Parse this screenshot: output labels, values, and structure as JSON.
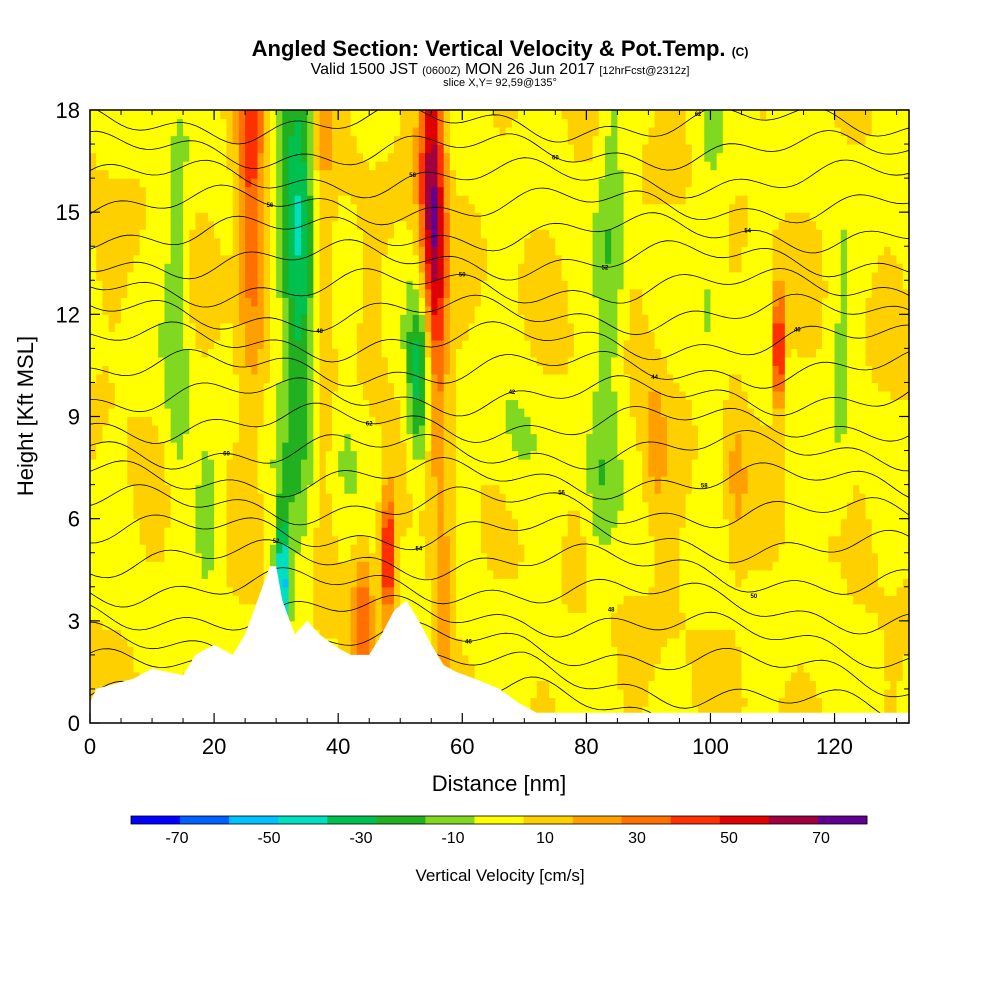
{
  "header": {
    "title": "Angled Section: Vertical Velocity & Pot.Temp.",
    "title_unit": "(C)",
    "valid_prefix": "Valid 1500 JST",
    "valid_utc": "(0600Z)",
    "valid_date": "MON 26 Jun 2017",
    "forecast": "[12hrFcst@2312z]",
    "slice": "slice X,Y= 92,59@135°"
  },
  "chart_data": {
    "type": "heatmap",
    "xlabel": "Distance [nm]",
    "ylabel": "Height [Kft MSL]",
    "xlim": [
      0,
      132
    ],
    "ylim": [
      0,
      18
    ],
    "x_ticks": [
      "0",
      "20",
      "40",
      "60",
      "80",
      "100",
      "120"
    ],
    "y_ticks": [
      "0",
      "3",
      "6",
      "9",
      "12",
      "15",
      "18"
    ],
    "colorbar": {
      "title": "Vertical Velocity [cm/s]",
      "tick_labels": [
        "-70",
        "-50",
        "-30",
        "-10",
        "10",
        "30",
        "50",
        "70"
      ],
      "bounds": [
        -80,
        80
      ],
      "colors": [
        "#0000ff",
        "#0060ff",
        "#00c0ff",
        "#00e0c0",
        "#00c050",
        "#20b020",
        "#80d820",
        "#ffff00",
        "#ffd000",
        "#ffa000",
        "#ff7000",
        "#ff3000",
        "#e00000",
        "#a00040",
        "#600090"
      ]
    },
    "terrain_kft": [
      [
        0,
        0.6
      ],
      [
        1,
        1.0
      ],
      [
        7,
        1.3
      ],
      [
        10,
        1.6
      ],
      [
        15,
        1.4
      ],
      [
        17,
        2.0
      ],
      [
        20,
        2.3
      ],
      [
        23,
        2.0
      ],
      [
        25,
        2.6
      ],
      [
        27,
        3.6
      ],
      [
        29,
        4.6
      ],
      [
        30,
        4.6
      ],
      [
        31,
        3.6
      ],
      [
        33,
        2.6
      ],
      [
        35,
        3.0
      ],
      [
        37,
        2.6
      ],
      [
        40,
        2.2
      ],
      [
        42,
        2.0
      ],
      [
        45,
        2.0
      ],
      [
        47,
        2.6
      ],
      [
        49,
        3.3
      ],
      [
        51,
        3.6
      ],
      [
        53,
        3.0
      ],
      [
        55,
        2.3
      ],
      [
        57,
        1.7
      ],
      [
        59,
        1.5
      ],
      [
        62,
        1.3
      ],
      [
        66,
        1.0
      ],
      [
        69,
        0.6
      ],
      [
        72,
        0.3
      ],
      [
        132,
        0.3
      ]
    ],
    "contour_labels": [
      "42",
      "44",
      "46",
      "48",
      "50",
      "52",
      "54",
      "56",
      "58",
      "60",
      "62"
    ]
  }
}
